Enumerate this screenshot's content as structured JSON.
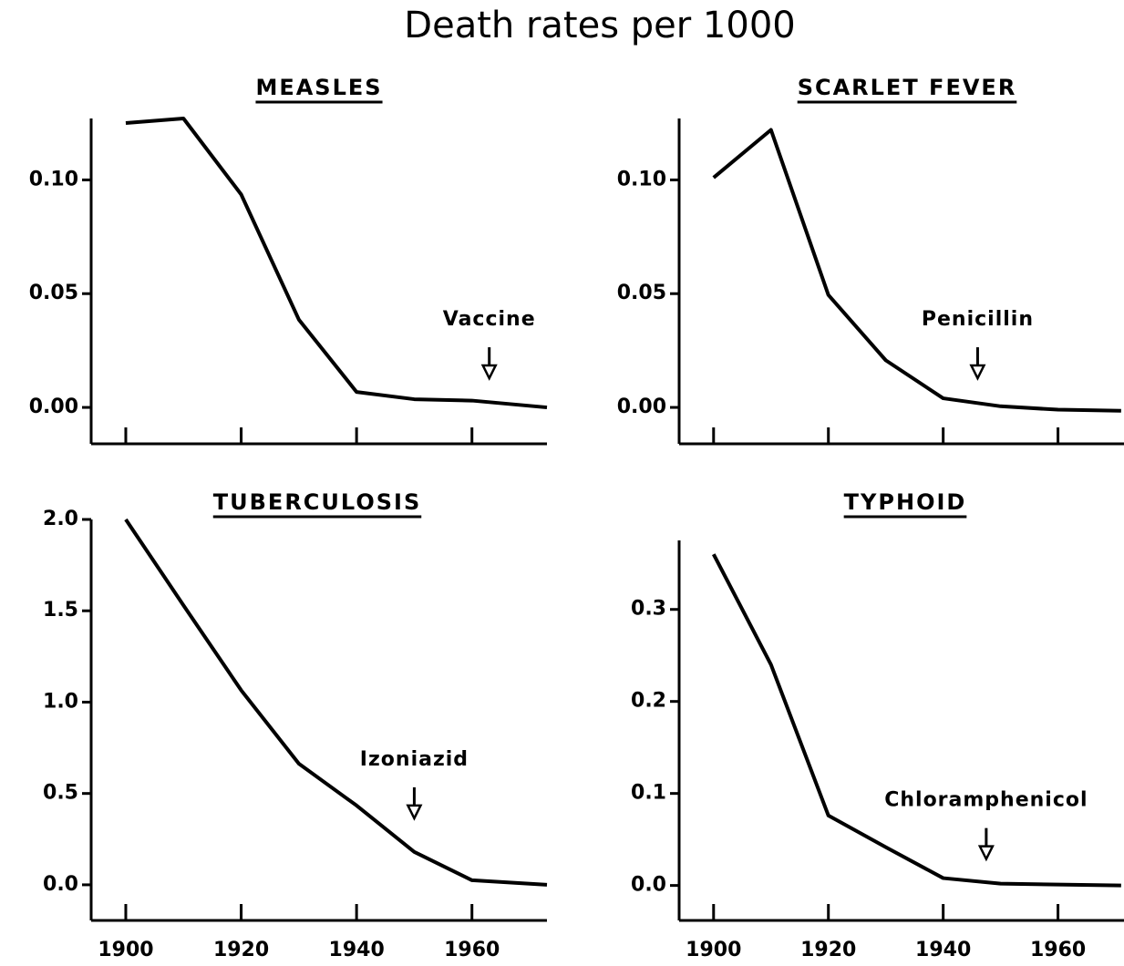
{
  "title": "Death rates per 1000",
  "chart_data": [
    {
      "type": "line",
      "title": "MEASLES",
      "x": [
        1900,
        1910,
        1920,
        1930,
        1940,
        1950,
        1960,
        1973
      ],
      "values": [
        0.125,
        0.127,
        0.0936,
        0.0386,
        0.0068,
        0.0036,
        0.003,
        0.0
      ],
      "color": "#000000",
      "xlim": [
        1894,
        1973
      ],
      "xticks": [
        1900,
        1920,
        1940,
        1960
      ],
      "show_xtick_labels": false,
      "ylim": [
        -0.016,
        0.127
      ],
      "yticks": [
        {
          "value": 0.0,
          "label": "0.00"
        },
        {
          "value": 0.05,
          "label": "0.05"
        },
        {
          "value": 0.1,
          "label": "0.10"
        }
      ],
      "annotation": {
        "text": "Vaccine",
        "x": 1963
      }
    },
    {
      "type": "line",
      "title": "SCARLET FEVER",
      "x": [
        1900,
        1910,
        1920,
        1930,
        1940,
        1950,
        1960,
        1971
      ],
      "values": [
        0.101,
        0.122,
        0.0494,
        0.0207,
        0.004,
        0.0005,
        -0.001,
        -0.0015
      ],
      "color": "#000000",
      "xlim": [
        1894,
        1971.5
      ],
      "xticks": [
        1900,
        1920,
        1940,
        1960
      ],
      "show_xtick_labels": false,
      "ylim": [
        -0.016,
        0.127
      ],
      "yticks": [
        {
          "value": 0.0,
          "label": "0.00"
        },
        {
          "value": 0.05,
          "label": "0.05"
        },
        {
          "value": 0.1,
          "label": "0.10"
        }
      ],
      "annotation": {
        "text": "Penicillin",
        "x": 1946
      }
    },
    {
      "type": "line",
      "title": "TUBERCULOSIS",
      "x": [
        1900,
        1910,
        1920,
        1930,
        1940,
        1950,
        1960,
        1973
      ],
      "values": [
        2.0,
        1.53,
        1.065,
        0.663,
        0.434,
        0.18,
        0.025,
        0.0
      ],
      "color": "#000000",
      "xlim": [
        1894,
        1973
      ],
      "xticks": [
        1900,
        1920,
        1940,
        1960
      ],
      "show_xtick_labels": true,
      "ylim": [
        -0.195,
        2.0
      ],
      "yticks": [
        {
          "value": 0,
          "label": "0.0"
        },
        0.5,
        {
          "value": 1,
          "label": "1.0"
        },
        1.5,
        {
          "value": 2,
          "label": "2.0"
        }
      ],
      "annotation": {
        "text": "Izoniazid",
        "x": 1950
      }
    },
    {
      "type": "line",
      "title": "TYPHOID",
      "x": [
        1900,
        1910,
        1920,
        1930,
        1940,
        1950,
        1960,
        1971
      ],
      "values": [
        0.36,
        0.24,
        0.076,
        0.0416,
        0.008,
        0.002,
        0.001,
        0.0
      ],
      "color": "#000000",
      "xlim": [
        1894,
        1971.5
      ],
      "xticks": [
        1900,
        1920,
        1940,
        1960
      ],
      "show_xtick_labels": true,
      "ylim": [
        -0.038,
        0.375
      ],
      "yticks": [
        {
          "value": 0,
          "label": "0.0"
        },
        0.1,
        0.2,
        0.3
      ],
      "annotation": {
        "text": "Chloramphenicol",
        "x": 1947.5
      }
    }
  ]
}
